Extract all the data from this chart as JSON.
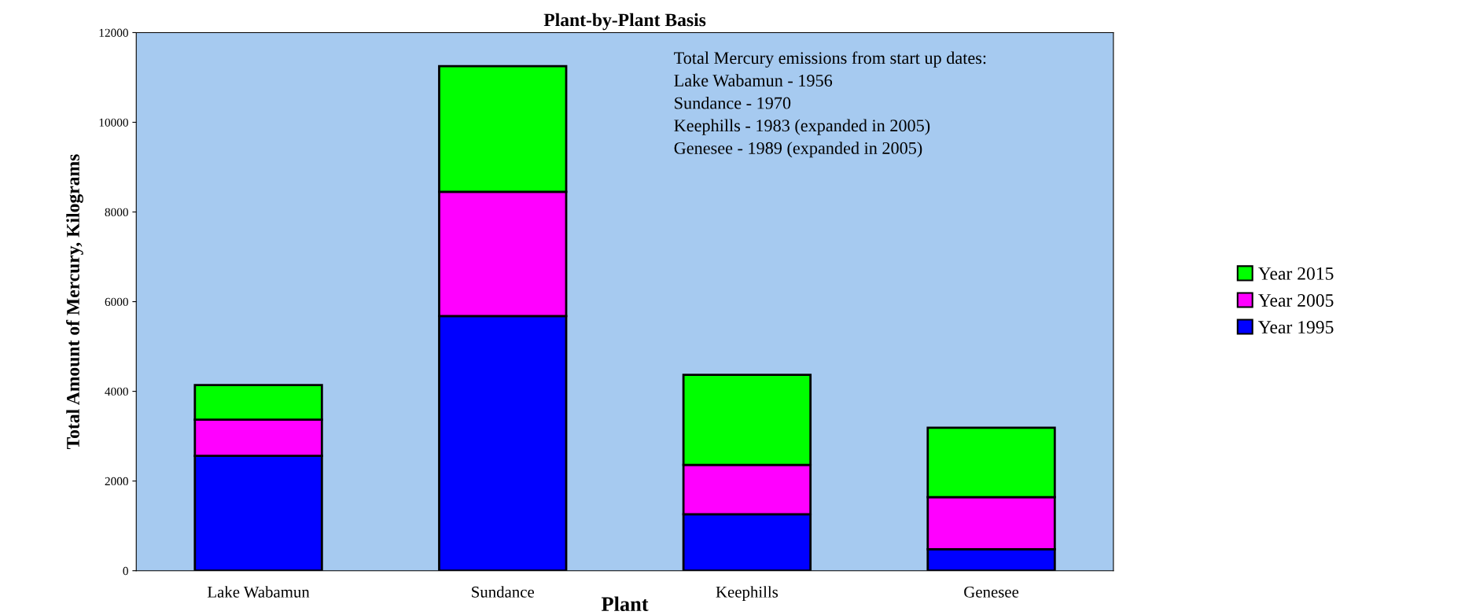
{
  "chart_data": {
    "type": "bar",
    "title": "Plant-by-Plant Basis",
    "xlabel": "Plant",
    "ylabel": "Total Amount of Mercury, Kilograms",
    "categories": [
      "Lake Wabamun",
      "Sundance",
      "Keephills",
      "Genesee"
    ],
    "stacked": true,
    "series": [
      {
        "name": "Year 1995",
        "color": "#0000ff",
        "values": [
          2560,
          5680,
          1260,
          480
        ]
      },
      {
        "name": "Year 2005",
        "color": "#ff00ff",
        "values": [
          810,
          2770,
          1100,
          1160
        ]
      },
      {
        "name": "Year 2015",
        "color": "#00ff00",
        "values": [
          770,
          2800,
          2010,
          1550
        ]
      }
    ],
    "ylim": [
      0,
      12000
    ],
    "yticks": [
      0,
      2000,
      4000,
      6000,
      8000,
      10000,
      12000
    ],
    "grid": false,
    "legend": "right",
    "annotations": [
      "Total Mercury emissions from start up dates:\nLake Wabamun - 1956\nSundance - 1970\nKeephills - 1983 (expanded in 2005)\nGenesee - 1989 (expanded in 2005)"
    ]
  }
}
